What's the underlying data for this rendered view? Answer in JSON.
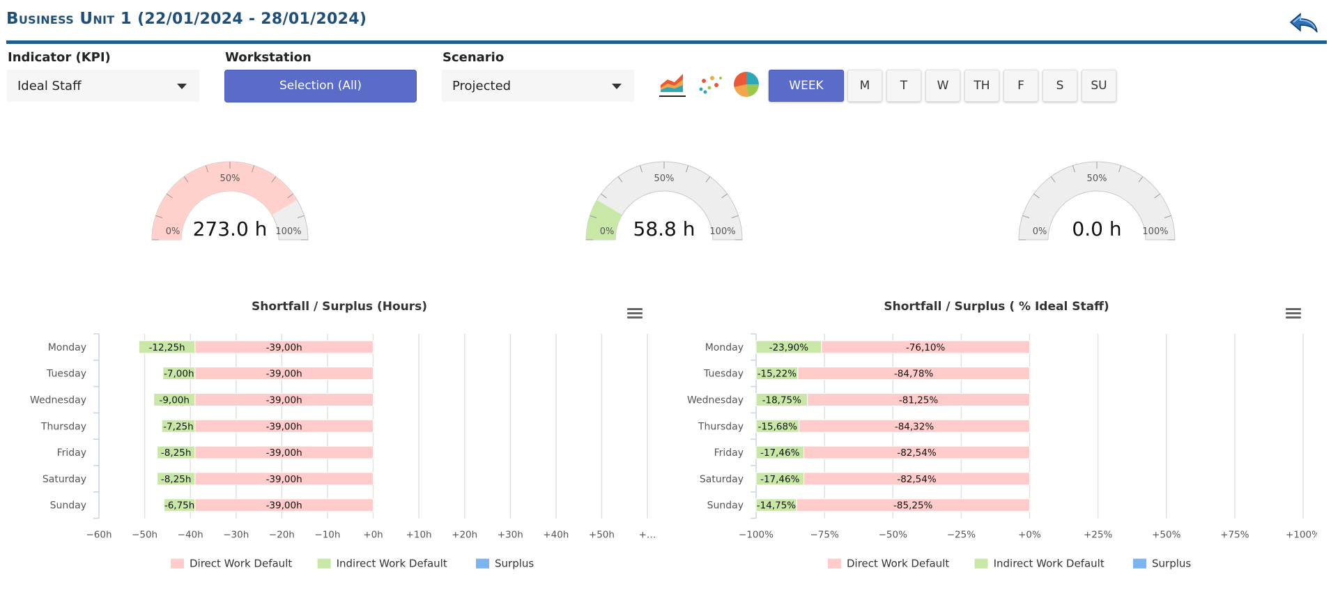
{
  "header": {
    "title_prefix": "Business Unit 1",
    "title_dates": " (22/01/2024 - 28/01/2024)"
  },
  "controls": {
    "kpi_label": "Indicator (KPI)",
    "kpi_value": "Ideal Staff",
    "workstation_label": "Workstation",
    "workstation_button": "Selection (All)",
    "scenario_label": "Scenario",
    "scenario_value": "Projected"
  },
  "chart_type_icons": [
    "area-chart-icon",
    "scatter-chart-icon",
    "pie-chart-icon"
  ],
  "day_buttons": [
    "WEEK",
    "M",
    "T",
    "W",
    "TH",
    "F",
    "S",
    "SU"
  ],
  "active_day": "WEEK",
  "gauges": [
    {
      "value_text": "273.0 h",
      "fill_fraction": 0.83,
      "color": "#ffd0cc",
      "min_label": "0%",
      "mid_label": "50%",
      "max_label": "100%"
    },
    {
      "value_text": "58.8 h",
      "fill_fraction": 0.17,
      "color": "#c9e8a8",
      "min_label": "0%",
      "mid_label": "50%",
      "max_label": "100%"
    },
    {
      "value_text": "0.0 h",
      "fill_fraction": 0.0,
      "color": "#ffd0cc",
      "min_label": "0%",
      "mid_label": "50%",
      "max_label": "100%"
    }
  ],
  "colors": {
    "direct": "#ffcccb",
    "indirect": "#c9e8a8",
    "surplus": "#7cb5ec",
    "accent": "#5b6bc8",
    "header_line": "#1e5e8a"
  },
  "chart_data": [
    {
      "type": "bar",
      "orientation": "horizontal",
      "stacked": true,
      "title": "Shortfall / Surplus (Hours)",
      "categories": [
        "Monday",
        "Tuesday",
        "Wednesday",
        "Thursday",
        "Friday",
        "Saturday",
        "Sunday"
      ],
      "series": [
        {
          "name": "Direct Work Default",
          "values": [
            -39,
            -39,
            -39,
            -39,
            -39,
            -39,
            -39
          ],
          "labels": [
            "-39,00h",
            "-39,00h",
            "-39,00h",
            "-39,00h",
            "-39,00h",
            "-39,00h",
            "-39,00h"
          ]
        },
        {
          "name": "Indirect Work Default",
          "values": [
            -12.25,
            -7,
            -9,
            -7.25,
            -8.25,
            -8.25,
            -6.75
          ],
          "labels": [
            "-12,25h",
            "-7,00h",
            "-9,00h",
            "-7,25h",
            "-8,25h",
            "-8,25h",
            "-6,75h"
          ]
        },
        {
          "name": "Surplus",
          "values": [
            0,
            0,
            0,
            0,
            0,
            0,
            0
          ],
          "labels": [
            "",
            "",
            "",
            "",
            "",
            "",
            ""
          ]
        }
      ],
      "xlim": [
        -60,
        60
      ],
      "xticks": [
        -60,
        -50,
        -40,
        -30,
        -20,
        -10,
        0,
        10,
        20,
        30,
        40,
        50,
        60
      ],
      "xtick_labels": [
        "−60h",
        "−50h",
        "−40h",
        "−30h",
        "−20h",
        "−10h",
        "+0h",
        "+10h",
        "+20h",
        "+30h",
        "+40h",
        "+50h",
        "+…"
      ],
      "grid": true,
      "legend": "bottom-center"
    },
    {
      "type": "bar",
      "orientation": "horizontal",
      "stacked": true,
      "title": "Shortfall / Surplus ( % Ideal Staff)",
      "categories": [
        "Monday",
        "Tuesday",
        "Wednesday",
        "Thursday",
        "Friday",
        "Saturday",
        "Sunday"
      ],
      "series": [
        {
          "name": "Direct Work Default",
          "values": [
            -76.1,
            -84.78,
            -81.25,
            -84.32,
            -82.54,
            -82.54,
            -85.25
          ],
          "labels": [
            "-76,10%",
            "-84,78%",
            "-81,25%",
            "-84,32%",
            "-82,54%",
            "-82,54%",
            "-85,25%"
          ]
        },
        {
          "name": "Indirect Work Default",
          "values": [
            -23.9,
            -15.22,
            -18.75,
            -15.68,
            -17.46,
            -17.46,
            -14.75
          ],
          "labels": [
            "-23,90%",
            "-15,22%",
            "-18,75%",
            "-15,68%",
            "-17,46%",
            "-17,46%",
            "-14,75%"
          ]
        },
        {
          "name": "Surplus",
          "values": [
            0,
            0,
            0,
            0,
            0,
            0,
            0
          ],
          "labels": [
            "",
            "",
            "",
            "",
            "",
            "",
            ""
          ]
        }
      ],
      "xlim": [
        -100,
        100
      ],
      "xticks": [
        -100,
        -75,
        -50,
        -25,
        0,
        25,
        50,
        75,
        100
      ],
      "xtick_labels": [
        "−100%",
        "−75%",
        "−50%",
        "−25%",
        "+0%",
        "+25%",
        "+50%",
        "+75%",
        "+100%"
      ],
      "grid": true,
      "legend": "bottom-center"
    }
  ]
}
